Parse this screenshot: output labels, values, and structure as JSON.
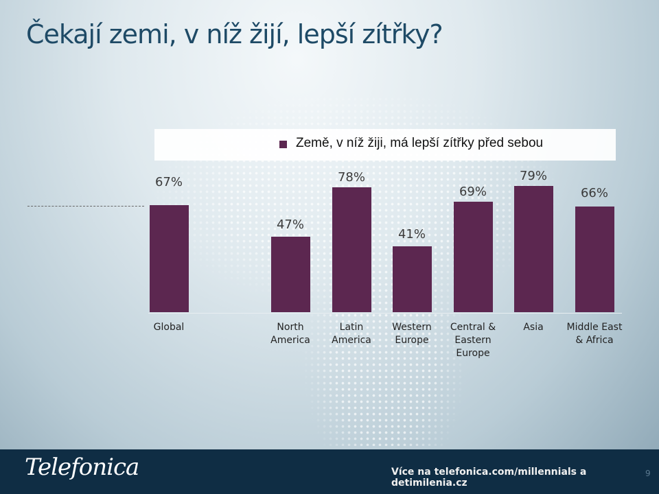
{
  "page": {
    "title": "Čekají zemi, v níž žijí, lepší zítřky?",
    "footer": {
      "brand": "Telefonica",
      "link": "Více na telefonica.com/millennials a detimilenia.cz",
      "page_number": "9"
    }
  },
  "chart_data": {
    "type": "bar",
    "title": "",
    "categories": [
      [
        "Global"
      ],
      [
        "North",
        "America"
      ],
      [
        "Latin",
        "America"
      ],
      [
        "Western",
        "Europe"
      ],
      [
        "Central &",
        "Eastern",
        "Europe"
      ],
      [
        "Asia"
      ],
      [
        "Middle East",
        "& Africa"
      ]
    ],
    "series": [
      {
        "name": "Země, v níž žiji, má lepší zítřky před sebou",
        "values": [
          67,
          47,
          78,
          41,
          69,
          79,
          66
        ]
      }
    ],
    "value_labels": [
      "67%",
      "47%",
      "78%",
      "41%",
      "69%",
      "79%",
      "66%"
    ],
    "ylim": [
      0,
      100
    ],
    "legend": "top",
    "colors": {
      "bar": "#5c2750"
    }
  }
}
